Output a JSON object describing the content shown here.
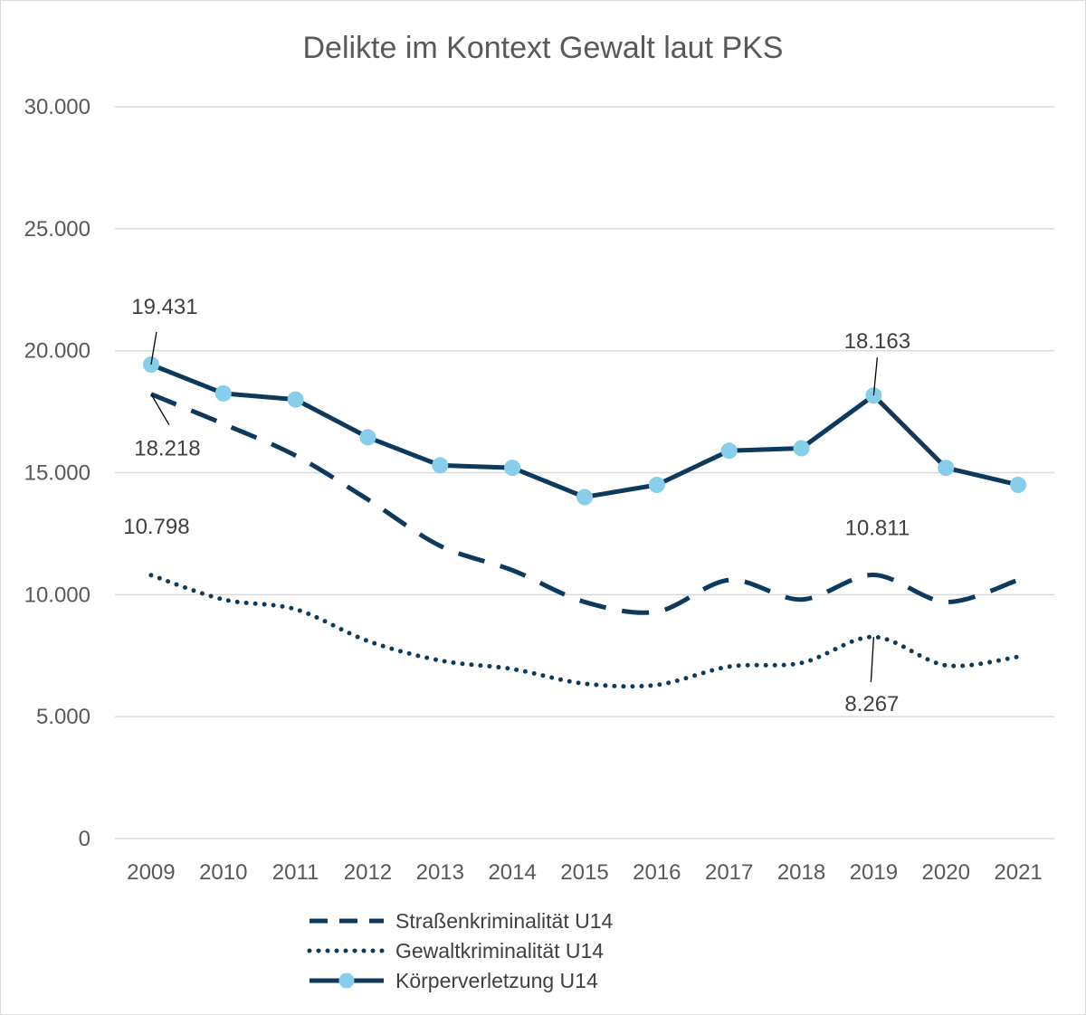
{
  "chart_data": {
    "type": "line",
    "title": "Delikte im Kontext Gewalt laut PKS",
    "xlabel": "",
    "ylabel": "",
    "ylim": [
      0,
      30000
    ],
    "yticks": [
      0,
      5000,
      10000,
      15000,
      20000,
      25000,
      30000
    ],
    "ytick_labels": [
      "0",
      "5.000",
      "10.000",
      "15.000",
      "20.000",
      "25.000",
      "30.000"
    ],
    "grid": "horizontal",
    "legend_position": "bottom",
    "categories": [
      "2009",
      "2010",
      "2011",
      "2012",
      "2013",
      "2014",
      "2015",
      "2016",
      "2017",
      "2018",
      "2019",
      "2020",
      "2021"
    ],
    "series": [
      {
        "name": "Straßenkriminalität U14",
        "style": "dashed",
        "color": "#0d3a5c",
        "values": [
          18218,
          17000,
          15700,
          13900,
          12000,
          11000,
          9700,
          9300,
          10600,
          9800,
          10811,
          9700,
          10600
        ]
      },
      {
        "name": "Gewaltkriminalität U14",
        "style": "dotted",
        "color": "#0d3a5c",
        "values": [
          10798,
          9800,
          9400,
          8100,
          7300,
          6950,
          6350,
          6300,
          7050,
          7200,
          8267,
          7100,
          7450
        ]
      },
      {
        "name": "Körperverletzung U14",
        "style": "solid-markers",
        "color": "#0d3a5c",
        "marker_color": "#87ceeb",
        "values": [
          19431,
          18250,
          18000,
          16450,
          15300,
          15200,
          14000,
          14500,
          15900,
          16000,
          18163,
          15200,
          14500
        ]
      }
    ],
    "annotations": [
      {
        "series": 2,
        "index": 0,
        "text": "19.431",
        "pos": "above"
      },
      {
        "series": 0,
        "index": 0,
        "text": "18.218",
        "pos": "below"
      },
      {
        "series": 1,
        "index": 0,
        "text": "10.798",
        "pos": "above"
      },
      {
        "series": 2,
        "index": 10,
        "text": "18.163",
        "pos": "above"
      },
      {
        "series": 0,
        "index": 10,
        "text": "10.811",
        "pos": "above"
      },
      {
        "series": 1,
        "index": 10,
        "text": "8.267",
        "pos": "below"
      }
    ]
  }
}
